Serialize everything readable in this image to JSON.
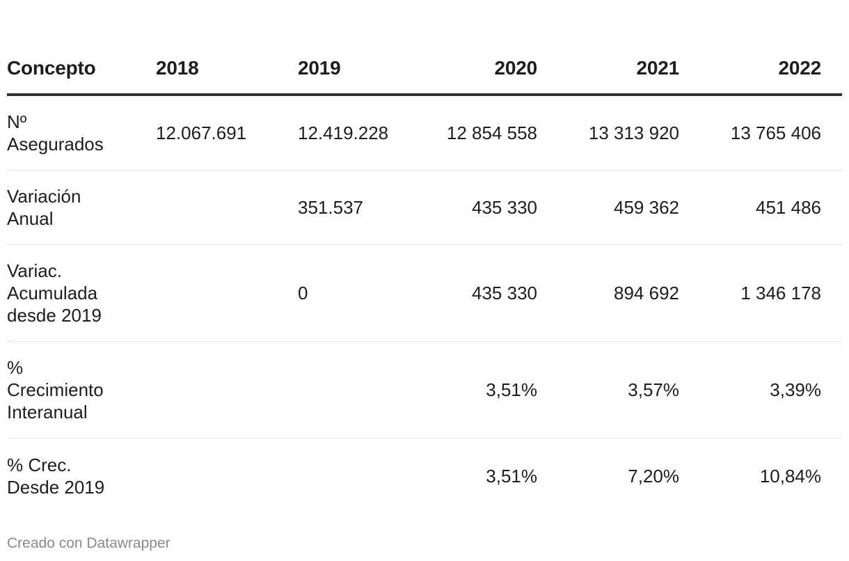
{
  "chart_data": {
    "type": "table",
    "columns": [
      "Concepto",
      "2018",
      "2019",
      "2020",
      "2021",
      "2022"
    ],
    "rows": [
      {
        "label": "Nº Asegurados",
        "values": [
          "12.067.691",
          "12.419.228",
          "12 854 558",
          "13 313 920",
          "13 765 406"
        ]
      },
      {
        "label": "Variación Anual",
        "values": [
          "",
          "351.537",
          "435 330",
          "459 362",
          "451 486"
        ]
      },
      {
        "label": "Variac. Acumulada desde 2019",
        "values": [
          "",
          "0",
          "435 330",
          "894 692",
          "1 346 178"
        ]
      },
      {
        "label": "% Crecimiento Interanual",
        "values": [
          "",
          "",
          "3,51%",
          "3,57%",
          "3,39%"
        ]
      },
      {
        "label": "% Crec. Desde 2019",
        "values": [
          "",
          "",
          "3,51%",
          "7,20%",
          "10,84%"
        ]
      }
    ]
  },
  "footer": {
    "credit": "Creado con Datawrapper"
  }
}
